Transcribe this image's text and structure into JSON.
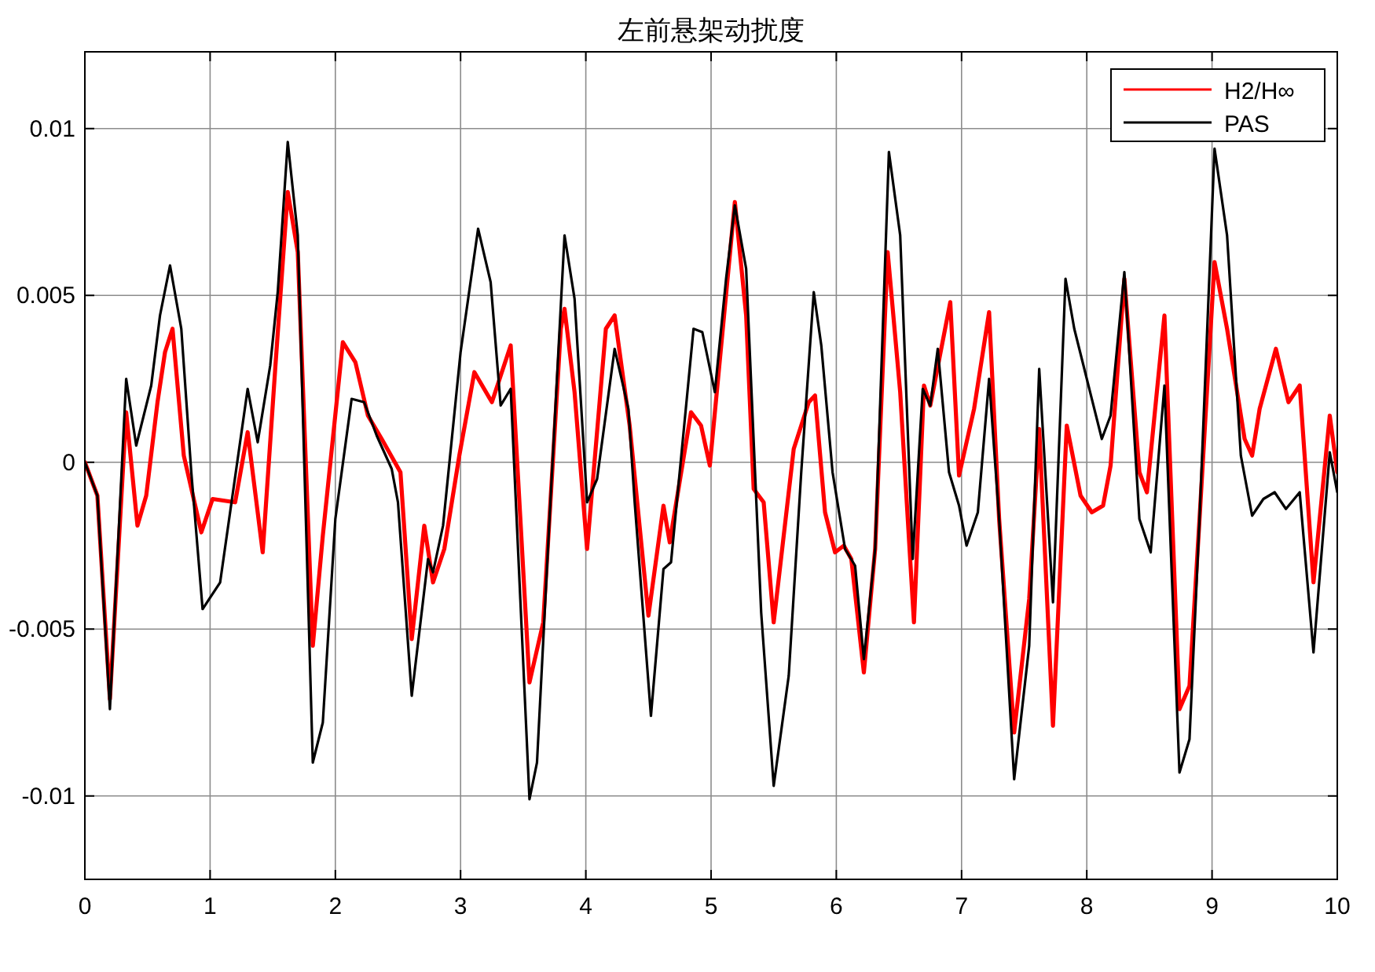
{
  "chart_data": {
    "type": "line",
    "title": "左前悬架动扰度",
    "xlim": [
      0,
      10
    ],
    "xticks": [
      0,
      1,
      2,
      3,
      4,
      5,
      6,
      7,
      8,
      9,
      10
    ],
    "ylim": [
      -0.0125,
      0.0123
    ],
    "yticks": [
      {
        "value": -0.01,
        "label": "-0.01"
      },
      {
        "value": -0.005,
        "label": "-0.005"
      },
      0,
      0.005,
      0.01
    ],
    "grid": true,
    "legend": "top right",
    "series": [
      {
        "name": "H2/H∞",
        "color": "#ff0000",
        "x": [
          0,
          0.1,
          0.2,
          0.33,
          0.42,
          0.49,
          0.58,
          0.64,
          0.7,
          0.79,
          0.93,
          1.02,
          1.2,
          1.3,
          1.42,
          1.52,
          1.62,
          1.7,
          1.82,
          1.9,
          2.06,
          2.16,
          2.26,
          2.37,
          2.52,
          2.61,
          2.71,
          2.78,
          2.87,
          2.99,
          3.11,
          3.25,
          3.4,
          3.55,
          3.66,
          3.8,
          3.83,
          3.91,
          4.01,
          4.16,
          4.23,
          4.35,
          4.5,
          4.62,
          4.67,
          4.84,
          4.92,
          4.99,
          5.19,
          5.28,
          5.34,
          5.42,
          5.5,
          5.66,
          5.78,
          5.83,
          5.91,
          5.99,
          6.06,
          6.12,
          6.22,
          6.31,
          6.41,
          6.51,
          6.62,
          6.7,
          6.75,
          6.91,
          6.98,
          7.1,
          7.22,
          7.3,
          7.42,
          7.54,
          7.62,
          7.73,
          7.84,
          7.95,
          8.04,
          8.13,
          8.19,
          8.3,
          8.42,
          8.48,
          8.62,
          8.74,
          8.82,
          8.9,
          9.02,
          9.12,
          9.26,
          9.32,
          9.38,
          9.51,
          9.61,
          9.7,
          9.81,
          9.94,
          10
        ],
        "values": [
          0,
          -0.001,
          -0.0071,
          0.0015,
          -0.0019,
          -0.001,
          0.0018,
          0.0033,
          0.004,
          0.0002,
          -0.0021,
          -0.0011,
          -0.0012,
          0.0009,
          -0.0027,
          0.0028,
          0.0081,
          0.0063,
          -0.0055,
          -0.0022,
          0.0036,
          0.003,
          0.0014,
          0.0007,
          -0.0003,
          -0.0053,
          -0.0019,
          -0.0036,
          -0.0026,
          0.0002,
          0.0027,
          0.0018,
          0.0035,
          -0.0066,
          -0.0048,
          0.004,
          0.0046,
          0.0021,
          -0.0026,
          0.004,
          0.0044,
          0.0011,
          -0.0046,
          -0.0013,
          -0.0024,
          0.0015,
          0.0011,
          -0.0001,
          0.0078,
          0.0044,
          -0.0008,
          -0.0012,
          -0.0048,
          0.0004,
          0.0018,
          0.002,
          -0.0015,
          -0.0027,
          -0.0025,
          -0.0029,
          -0.0063,
          -0.0026,
          0.0063,
          0.0021,
          -0.0048,
          0.0023,
          0.0017,
          0.0048,
          -0.0004,
          0.0016,
          0.0045,
          -0.0017,
          -0.0081,
          -0.0041,
          0.001,
          -0.0079,
          0.0011,
          -0.001,
          -0.0015,
          -0.0013,
          -0.0001,
          0.0055,
          -0.0003,
          -0.0009,
          0.0044,
          -0.0074,
          -0.0067,
          -0.0017,
          0.006,
          0.004,
          0.0007,
          0.0002,
          0.0016,
          0.0034,
          0.0018,
          0.0023,
          -0.0036,
          0.0014,
          -0.0003
        ]
      },
      {
        "name": "PAS",
        "color": "#000000",
        "x": [
          0,
          0.1,
          0.2,
          0.33,
          0.41,
          0.53,
          0.6,
          0.68,
          0.77,
          0.85,
          0.94,
          1.08,
          1.3,
          1.38,
          1.48,
          1.54,
          1.62,
          1.7,
          1.82,
          1.9,
          2.0,
          2.13,
          2.23,
          2.33,
          2.45,
          2.5,
          2.61,
          2.74,
          2.78,
          2.86,
          3.0,
          3.14,
          3.24,
          3.32,
          3.4,
          3.55,
          3.61,
          3.71,
          3.83,
          3.91,
          4.01,
          4.09,
          4.23,
          4.34,
          4.39,
          4.52,
          4.62,
          4.68,
          4.86,
          4.93,
          5.03,
          5.12,
          5.19,
          5.28,
          5.4,
          5.5,
          5.62,
          5.72,
          5.82,
          5.88,
          5.97,
          6.07,
          6.15,
          6.22,
          6.31,
          6.42,
          6.51,
          6.61,
          6.69,
          6.75,
          6.81,
          6.9,
          6.98,
          7.04,
          7.13,
          7.22,
          7.3,
          7.42,
          7.54,
          7.62,
          7.73,
          7.83,
          7.9,
          8.12,
          8.19,
          8.3,
          8.42,
          8.51,
          8.62,
          8.74,
          8.82,
          8.9,
          9.02,
          9.12,
          9.23,
          9.32,
          9.41,
          9.5,
          9.59,
          9.7,
          9.81,
          9.94,
          10
        ],
        "values": [
          0,
          -0.001,
          -0.0074,
          0.0025,
          0.0005,
          0.0023,
          0.0044,
          0.0059,
          0.004,
          -0.0003,
          -0.0044,
          -0.0036,
          0.0022,
          0.0006,
          0.0029,
          0.0051,
          0.0096,
          0.0068,
          -0.009,
          -0.0078,
          -0.0017,
          0.0019,
          0.0018,
          0.0008,
          -0.0002,
          -0.0012,
          -0.007,
          -0.0029,
          -0.0033,
          -0.0019,
          0.0033,
          0.007,
          0.0054,
          0.0017,
          0.0022,
          -0.0101,
          -0.009,
          -0.0017,
          0.0068,
          0.0049,
          -0.0012,
          -0.0005,
          0.0034,
          0.0016,
          -0.0012,
          -0.0076,
          -0.0032,
          -0.003,
          0.004,
          0.0039,
          0.0021,
          0.0055,
          0.0077,
          0.0058,
          -0.0045,
          -0.0097,
          -0.0064,
          -0.0003,
          0.0051,
          0.0035,
          -0.0003,
          -0.0026,
          -0.0031,
          -0.0059,
          -0.0026,
          0.0093,
          0.0068,
          -0.0029,
          0.0022,
          0.0017,
          0.0034,
          -0.0003,
          -0.0013,
          -0.0025,
          -0.0015,
          0.0025,
          -0.0017,
          -0.0095,
          -0.0055,
          0.0028,
          -0.0042,
          0.0055,
          0.004,
          0.0007,
          0.0014,
          0.0057,
          -0.0017,
          -0.0027,
          0.0023,
          -0.0093,
          -0.0083,
          -0.0017,
          0.0094,
          0.0068,
          0.0002,
          -0.0016,
          -0.0011,
          -0.0009,
          -0.0014,
          -0.0009,
          -0.0057,
          0.0003,
          -0.0009
        ]
      }
    ]
  }
}
